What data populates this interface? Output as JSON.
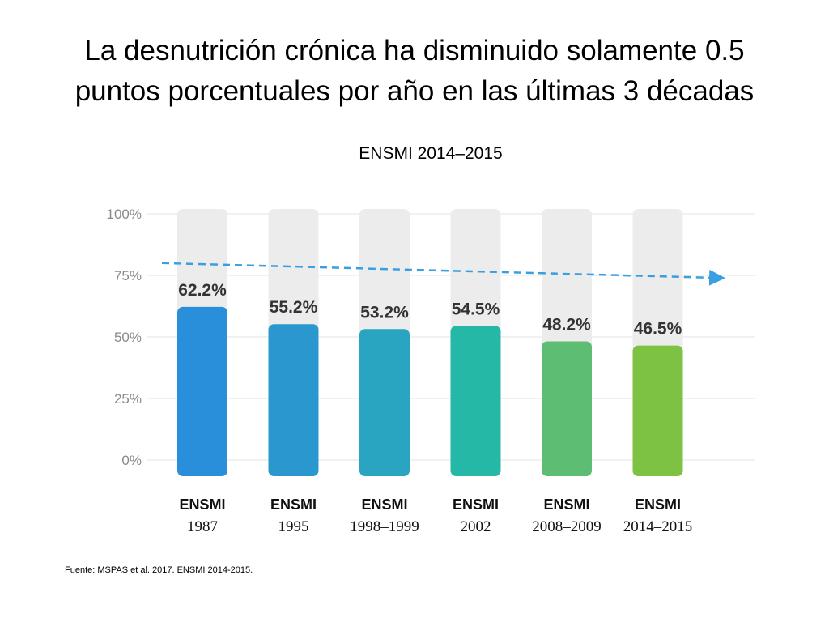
{
  "slide": {
    "title_line1": "La desnutrición crónica ha disminuido solamente 0.5",
    "title_line2": "puntos porcentuales por año en las últimas 3 décadas",
    "source": "Fuente: MSPAS et al. 2017. ENSMI 2014-2015."
  },
  "chart_data": {
    "type": "bar",
    "subtitle": "ENSMI 2014–2015",
    "categories": [
      {
        "name": "ENSMI",
        "years": "1987"
      },
      {
        "name": "ENSMI",
        "years": "1995"
      },
      {
        "name": "ENSMI",
        "years": "1998–1999"
      },
      {
        "name": "ENSMI",
        "years": "2002"
      },
      {
        "name": "ENSMI",
        "years": "2008–2009"
      },
      {
        "name": "ENSMI",
        "years": "2014–2015"
      }
    ],
    "values": [
      62.2,
      55.2,
      53.2,
      54.5,
      48.2,
      46.5
    ],
    "value_labels": [
      "62.2%",
      "55.2%",
      "53.2%",
      "54.5%",
      "48.2%",
      "46.5%"
    ],
    "ylim": [
      0,
      100
    ],
    "yticks": [
      0,
      25,
      50,
      75,
      100
    ],
    "ytick_labels": [
      "0%",
      "25%",
      "50%",
      "75%",
      "100%"
    ],
    "background_bar_value": 100,
    "bar_colors": [
      "#2a8fda",
      "#2a98cf",
      "#2aa5c1",
      "#26b8a6",
      "#5cbd73",
      "#7dc243"
    ],
    "background_color": "#ececec",
    "trend_line": {
      "from": 80,
      "to": 74,
      "color": "#3a9fe0",
      "style": "dashed-arrow"
    },
    "grid": true
  }
}
